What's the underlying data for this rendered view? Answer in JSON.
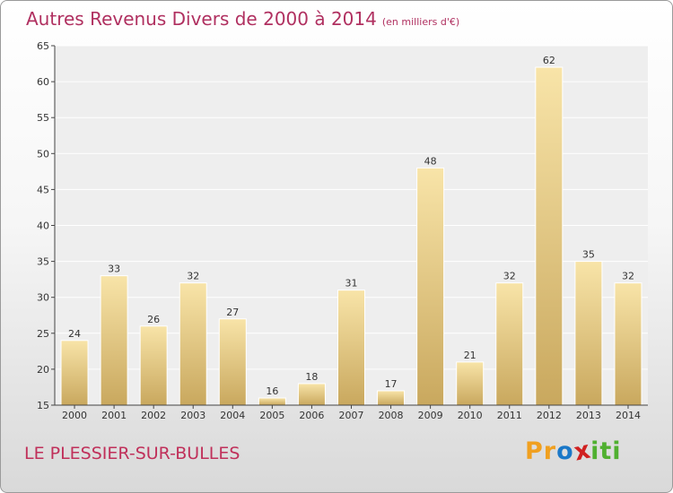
{
  "title": "Autres Revenus Divers de 2000 à 2014",
  "title_unit": "(en milliers d'€)",
  "location": "LE PLESSIER-SUR-BULLES",
  "logo": {
    "text": "Proxiti",
    "letters": [
      "P",
      "r",
      "o",
      "x",
      "i",
      "t",
      "i"
    ],
    "colors": [
      "#f0a020",
      "#f0a020",
      "#1a78c8",
      "#d02020",
      "#50b030",
      "#50b030",
      "#50b030"
    ]
  },
  "colors": {
    "title": "#b03060",
    "bar_light": "#f8e4a8",
    "bar_dark": "#c9a85e"
  },
  "chart_data": {
    "type": "bar",
    "categories": [
      "2000",
      "2001",
      "2002",
      "2003",
      "2004",
      "2005",
      "2006",
      "2007",
      "2008",
      "2009",
      "2010",
      "2011",
      "2012",
      "2013",
      "2014"
    ],
    "values": [
      24,
      33,
      26,
      32,
      27,
      16,
      18,
      31,
      17,
      48,
      21,
      32,
      62,
      35,
      32
    ],
    "data_labels": [
      "24",
      "33",
      "26",
      "32",
      "27",
      "16",
      "18",
      "31",
      "17",
      "48",
      "21",
      "32",
      "62",
      "35",
      "32"
    ],
    "yticks": [
      "15",
      "20",
      "25",
      "30",
      "35",
      "40",
      "45",
      "50",
      "55",
      "60",
      "65"
    ],
    "ylim": [
      15,
      65
    ],
    "grid": "horizontal"
  }
}
